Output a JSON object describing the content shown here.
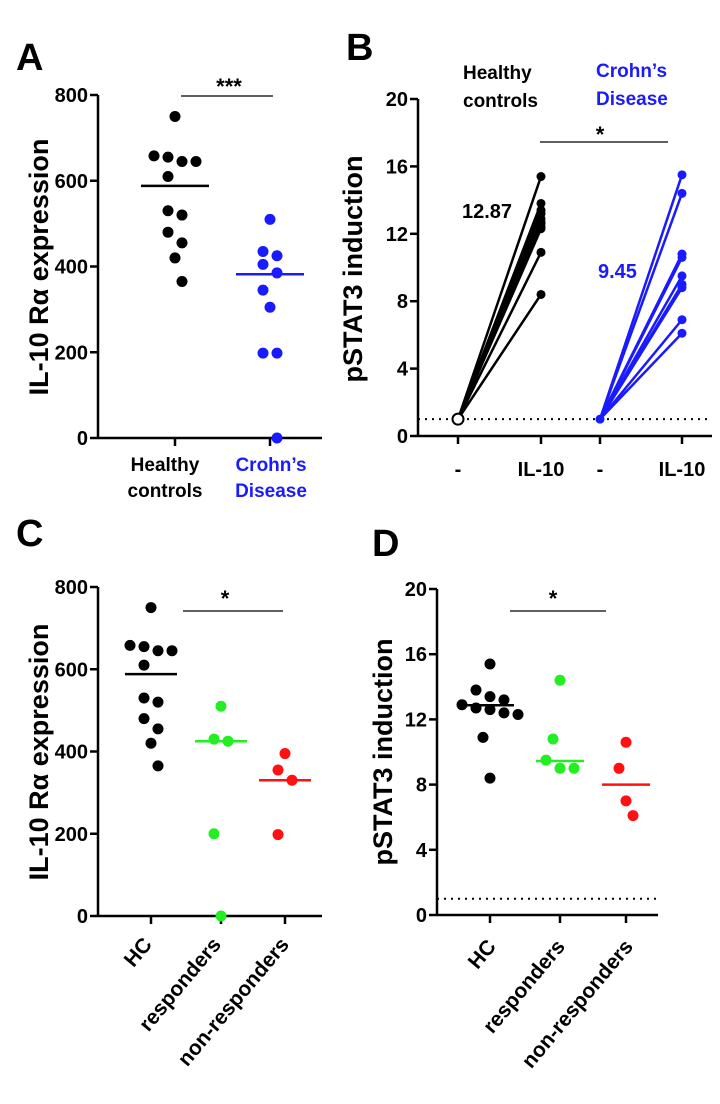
{
  "colors": {
    "healthy": "#000000",
    "crohns": "#1a1aff",
    "responders": "#22ee22",
    "non_responders": "#ff1111",
    "axis": "#000000"
  },
  "chart_data": [
    {
      "panel": "A",
      "type": "scatter",
      "ylabel": "IL-10 Rα expression",
      "ylim": [
        0,
        800
      ],
      "yticks": [
        "0",
        "200",
        "400",
        "600",
        "800"
      ],
      "groups": [
        {
          "label_lines": [
            "Healthy",
            "controls"
          ],
          "color": "#000000",
          "mean": 588,
          "values": [
            750,
            655,
            658,
            645,
            645,
            610,
            530,
            520,
            480,
            455,
            420,
            365
          ]
        },
        {
          "label_lines": [
            "Crohn’s",
            "Disease"
          ],
          "color": "#1a1aff",
          "mean": 382,
          "values": [
            510,
            435,
            425,
            405,
            385,
            345,
            305,
            198,
            198,
            0
          ]
        }
      ],
      "significance": "***"
    },
    {
      "panel": "B",
      "type": "line",
      "ylabel": "pSTAT3 induction",
      "ylim": [
        0,
        20
      ],
      "yticks": [
        "0",
        "4",
        "8",
        "12",
        "16",
        "20"
      ],
      "x_categories": [
        "-",
        "IL-10",
        "-",
        "IL-10"
      ],
      "baseline": 1,
      "groups": [
        {
          "label_lines": [
            "Healthy",
            "controls"
          ],
          "color": "#000000",
          "start": 1,
          "mean_label": "12.87",
          "end_values": [
            15.4,
            13.8,
            13.4,
            13.2,
            12.9,
            12.7,
            12.6,
            12.4,
            12.3,
            10.9,
            8.4
          ]
        },
        {
          "label_lines": [
            "Crohn’s",
            "Disease"
          ],
          "color": "#1a1aff",
          "start": 1,
          "mean_label": "9.45",
          "end_values": [
            15.5,
            14.4,
            10.8,
            10.6,
            9.5,
            9.0,
            8.8,
            6.9,
            6.1
          ]
        }
      ],
      "significance": "*"
    },
    {
      "panel": "C",
      "type": "scatter",
      "ylabel": "IL-10 Rα expression",
      "ylim": [
        0,
        800
      ],
      "yticks": [
        "0",
        "200",
        "400",
        "600",
        "800"
      ],
      "groups": [
        {
          "label": "HC",
          "color": "#000000",
          "mean": 588,
          "values": [
            750,
            655,
            658,
            645,
            645,
            610,
            530,
            520,
            480,
            455,
            420,
            365
          ]
        },
        {
          "label": "responders",
          "color": "#22ee22",
          "mean": 425,
          "values": [
            510,
            430,
            425,
            200,
            0
          ]
        },
        {
          "label": "non-responders",
          "color": "#ff1111",
          "mean": 330,
          "values": [
            395,
            355,
            330,
            198
          ]
        }
      ],
      "significance": "*"
    },
    {
      "panel": "D",
      "type": "scatter",
      "ylabel": "pSTAT3 induction",
      "ylim": [
        0,
        20
      ],
      "yticks": [
        "0",
        "4",
        "8",
        "12",
        "16",
        "20"
      ],
      "baseline": 1,
      "groups": [
        {
          "label": "HC",
          "color": "#000000",
          "mean": 12.87,
          "values": [
            15.4,
            13.8,
            13.4,
            13.2,
            12.9,
            12.7,
            12.6,
            12.4,
            12.3,
            10.9,
            8.4
          ]
        },
        {
          "label": "responders",
          "color": "#22ee22",
          "mean": 9.45,
          "values": [
            14.4,
            10.8,
            9.5,
            9.0,
            9.0
          ]
        },
        {
          "label": "non-responders",
          "color": "#ff1111",
          "mean": 8.0,
          "values": [
            10.6,
            9.0,
            7.0,
            6.1
          ]
        }
      ],
      "significance": "*"
    }
  ]
}
